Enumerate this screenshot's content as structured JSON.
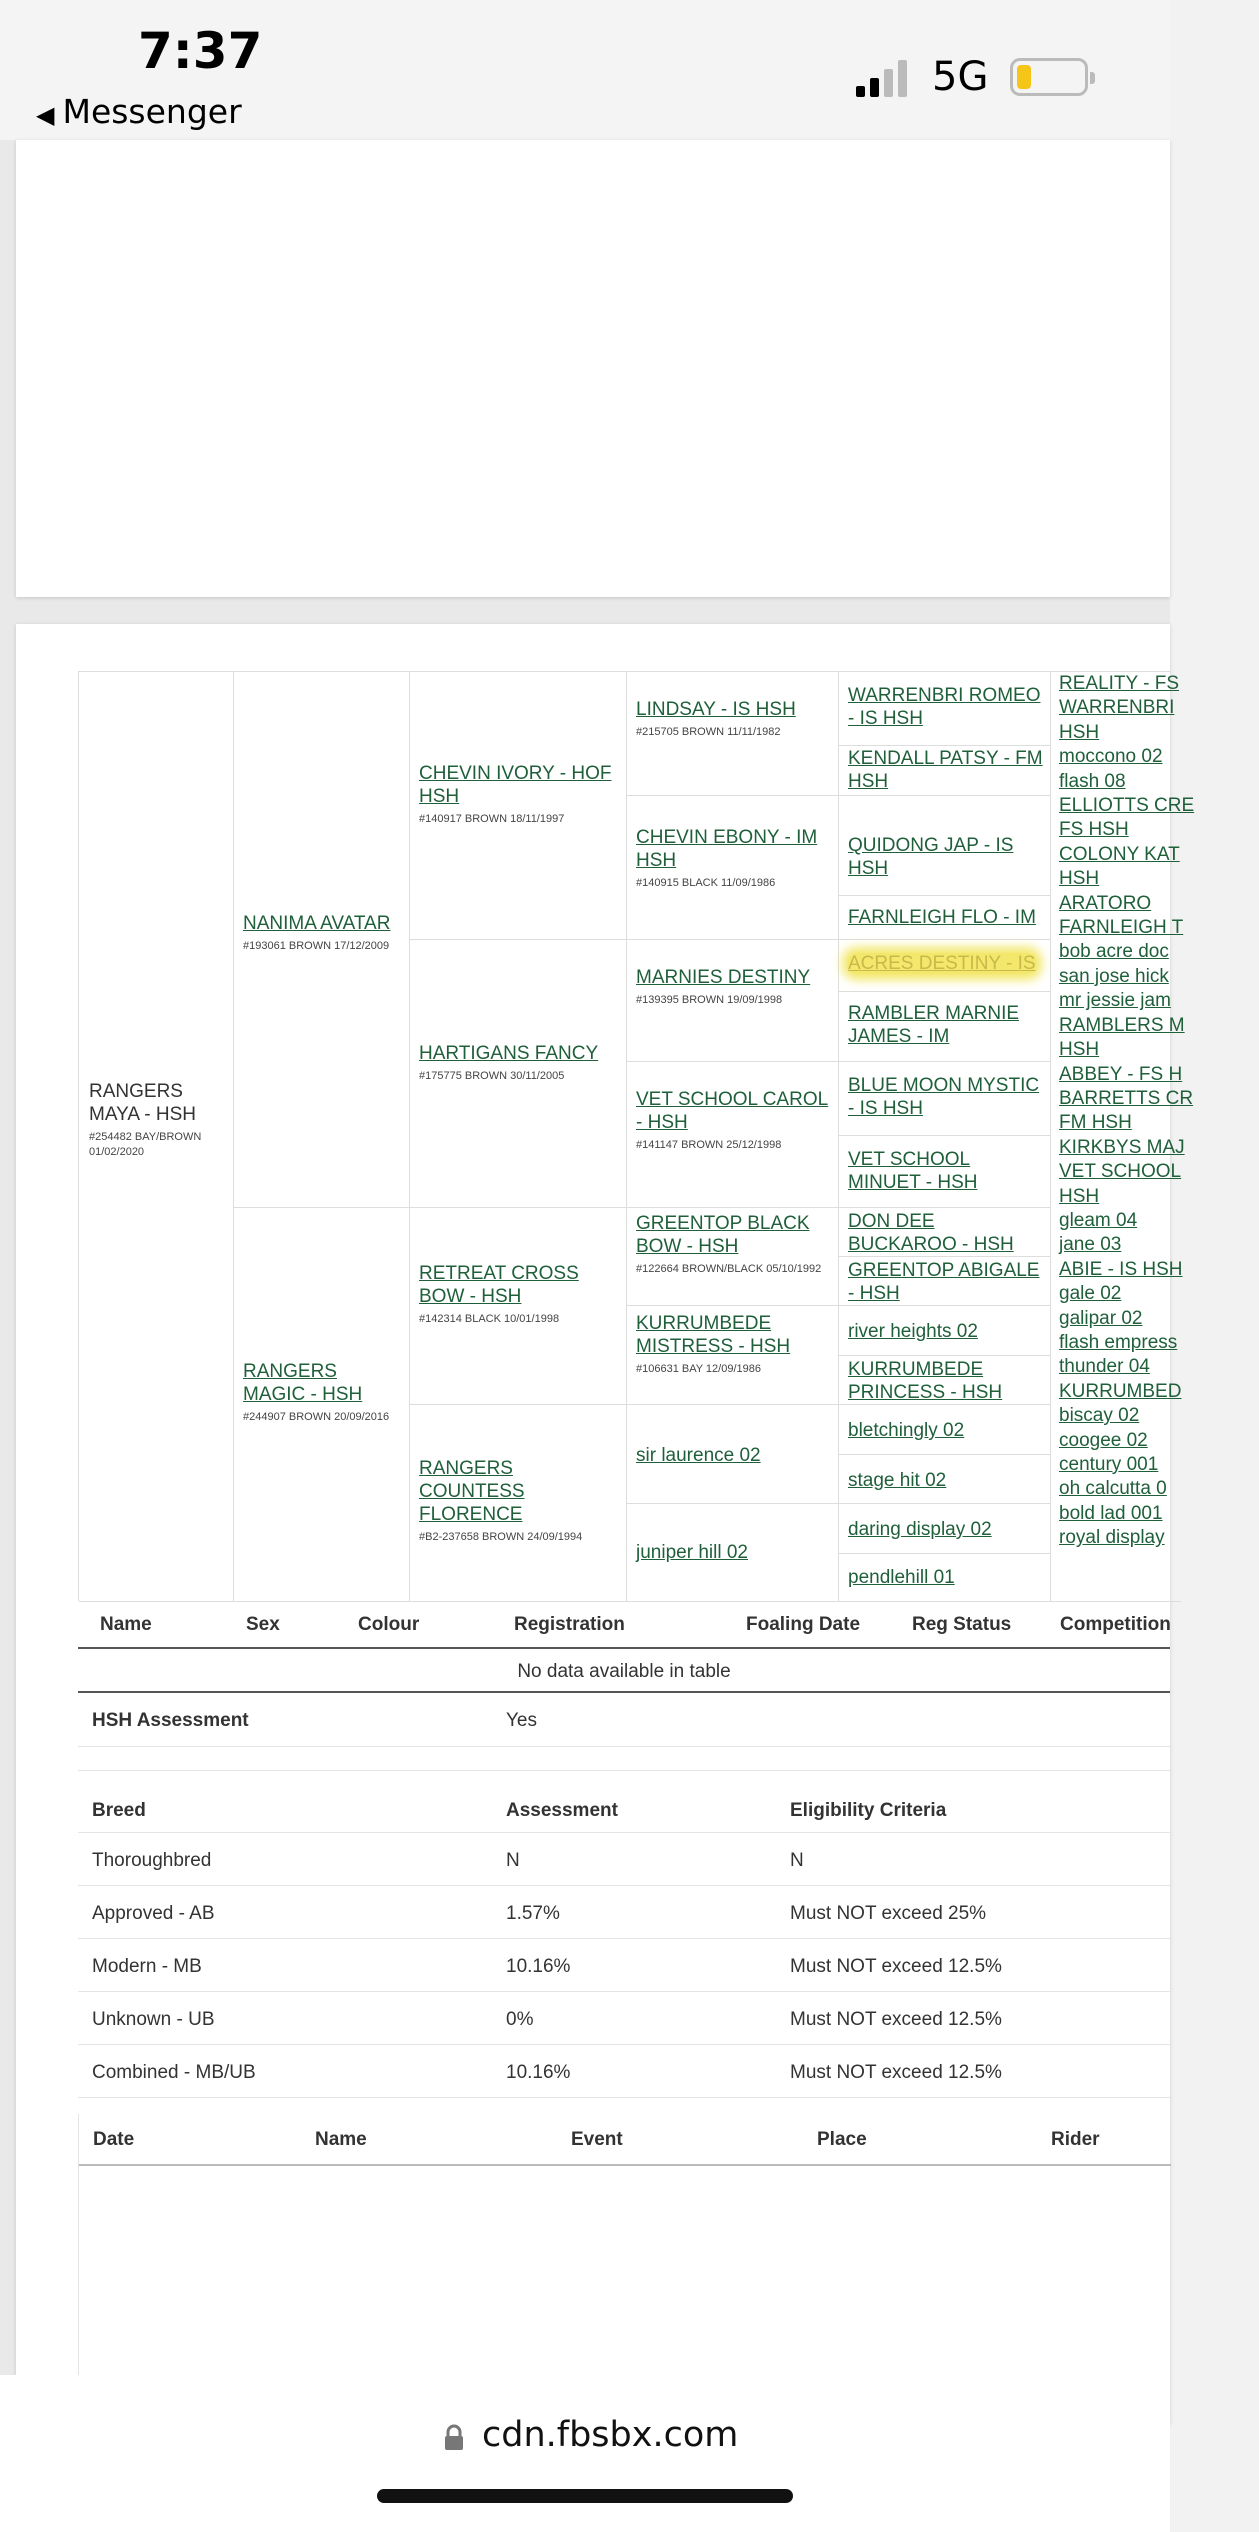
{
  "status": {
    "time": "7:37",
    "back_app": "Messenger",
    "network": "5G"
  },
  "browser": {
    "url": "cdn.fbsbx.com"
  },
  "pedigree": {
    "subject": {
      "name": "RANGERS MAYA - HSH",
      "info": "#254482 BAY/BROWN 01/02/2020"
    },
    "gen1": [
      {
        "name": "NANIMA AVATAR",
        "info": "#193061 BROWN 17/12/2009"
      },
      {
        "name": "RANGERS MAGIC - HSH",
        "info": "#244907 BROWN 20/09/2016"
      }
    ],
    "gen2": [
      {
        "name": "CHEVIN IVORY - HOF HSH",
        "info": "#140917 BROWN 18/11/1997"
      },
      {
        "name": "HARTIGANS FANCY",
        "info": "#175775 BROWN 30/11/2005"
      },
      {
        "name": "RETREAT CROSS BOW - HSH",
        "info": "#142314 BLACK 10/01/1998"
      },
      {
        "name": "RANGERS COUNTESS FLORENCE",
        "info": "#B2-237658 BROWN 24/09/1994"
      }
    ],
    "gen3": [
      {
        "name": "LINDSAY - IS HSH",
        "info": "#215705 BROWN 11/11/1982"
      },
      {
        "name": "CHEVIN EBONY - IM HSH",
        "info": "#140915 BLACK 11/09/1986"
      },
      {
        "name": "MARNIES DESTINY",
        "info": "#139395 BROWN 19/09/1998"
      },
      {
        "name": "VET SCHOOL CAROL - HSH",
        "info": "#141147 BROWN 25/12/1998"
      },
      {
        "name": "GREENTOP BLACK BOW - HSH",
        "info": "#122664 BROWN/BLACK 05/10/1992"
      },
      {
        "name": "KURRUMBEDE MISTRESS - HSH",
        "info": "#106631 BAY 12/09/1986"
      },
      {
        "name": "sir laurence 02",
        "info": ""
      },
      {
        "name": "juniper hill 02",
        "info": ""
      }
    ],
    "gen4": [
      "WARRENBRI ROMEO - IS HSH",
      "KENDALL PATSY - FM HSH",
      "QUIDONG JAP - IS HSH",
      "FARNLEIGH FLO - IM",
      "ACRES DESTINY - IS",
      "RAMBLER MARNIE JAMES - IM",
      "BLUE MOON MYSTIC - IS HSH",
      "VET SCHOOL MINUET - HSH",
      "DON DEE BUCKAROO - HSH",
      "GREENTOP ABIGALE - HSH",
      "river heights 02",
      "KURRUMBEDE PRINCESS - HSH",
      "bletchingly 02",
      "stage hit 02",
      "daring display 02",
      "pendlehill 01"
    ],
    "gen5": [
      "REALITY - FS",
      "WARRENBRI",
      "HSH",
      "moccono 02",
      "flash 08",
      "ELLIOTTS CRE",
      "FS HSH",
      "COLONY KAT",
      "HSH",
      "ARATORO",
      "FARNLEIGH T",
      "bob acre doc",
      "san jose hick",
      "mr jessie jam",
      "RAMBLERS M",
      "HSH",
      "ABBEY - FS H",
      "BARRETTS CR",
      "FM HSH",
      "KIRKBYS MAJ",
      "VET SCHOOL",
      "HSH",
      "gleam 04",
      "jane 03",
      "ABIE - IS HSH",
      "gale 02",
      "galipar 02",
      "flash empress",
      "thunder 04",
      "KURRUMBED",
      "biscay 02",
      "coogee 02",
      "century 001",
      "oh calcutta 0",
      "bold lad 001",
      "royal display"
    ]
  },
  "offspring_table": {
    "headers": [
      "Name",
      "Sex",
      "Colour",
      "Registration",
      "Foaling Date",
      "Reg Status",
      "Competition"
    ],
    "empty_text": "No data available in table"
  },
  "assessment": {
    "label": "HSH Assessment",
    "value": "Yes"
  },
  "breed_table": {
    "headers": [
      "Breed",
      "Assessment",
      "Eligibility Criteria"
    ],
    "rows": [
      [
        "Thoroughbred",
        "N",
        "N"
      ],
      [
        "Approved - AB",
        "1.57%",
        "Must NOT exceed 25%"
      ],
      [
        "Modern - MB",
        "10.16%",
        "Must NOT exceed 12.5%"
      ],
      [
        "Unknown - UB",
        "0%",
        "Must NOT exceed 12.5%"
      ],
      [
        "Combined - MB/UB",
        "10.16%",
        "Must NOT exceed 12.5%"
      ]
    ]
  },
  "results_table": {
    "headers": [
      "Date",
      "Name",
      "Event",
      "Place",
      "Rider"
    ]
  },
  "colors": {
    "link": "#1f5f3a",
    "highlight": "#f3e86b"
  }
}
